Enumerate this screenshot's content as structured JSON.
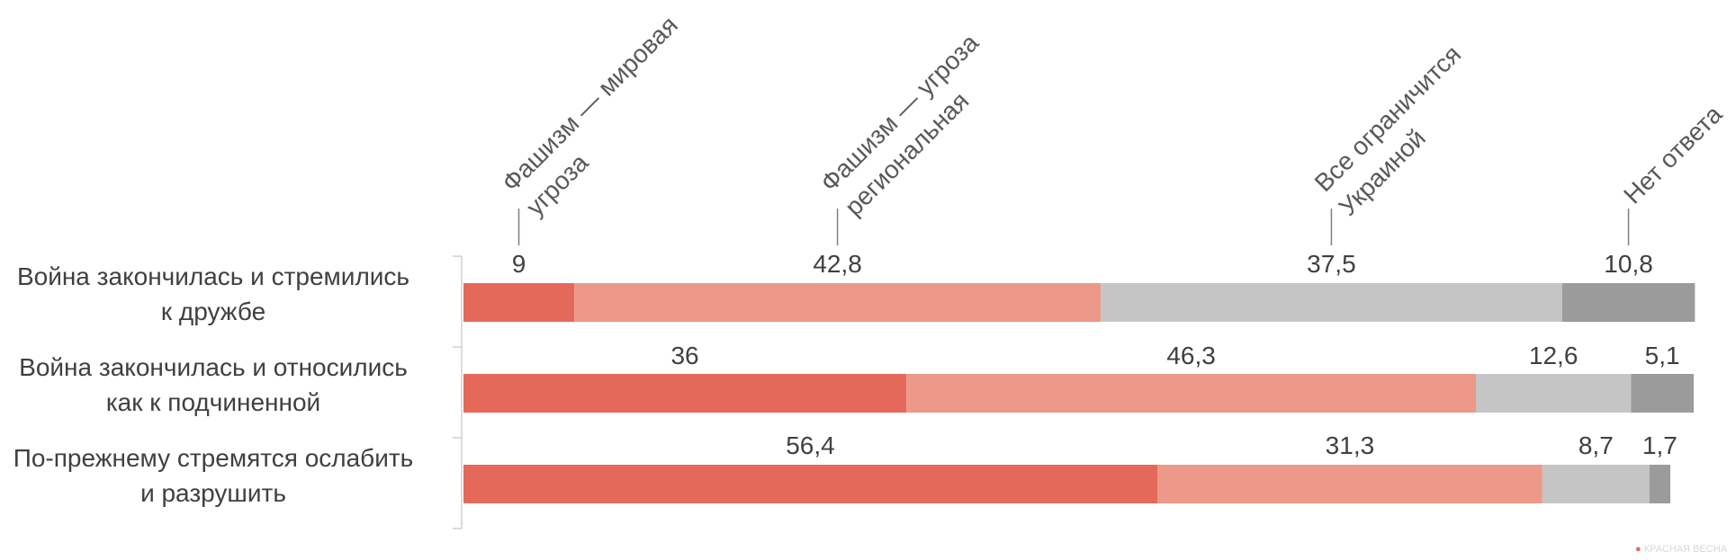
{
  "chart_data": {
    "type": "bar",
    "stacked": true,
    "orientation": "horizontal",
    "xlim": [
      0,
      100
    ],
    "grid": false,
    "legend_position": "top",
    "categories": [
      [
        "Война закончилась и стремились",
        "к дружбе"
      ],
      [
        "Война закончилась и относились",
        "как к подчиненной"
      ],
      [
        "По-прежнему стремятся ослабить",
        "и разрушить"
      ]
    ],
    "series": [
      {
        "name": "Фашизм — мировая угроза",
        "name_lines": [
          "Фашизм — мировая",
          "угроза"
        ],
        "color": "#e5695a",
        "values": [
          9,
          36,
          56.4
        ],
        "labels": [
          "9",
          "36",
          "56,4"
        ]
      },
      {
        "name": "Фашизм — угроза региональная",
        "name_lines": [
          "Фашизм — угроза",
          "региональная"
        ],
        "color": "#ec9989",
        "values": [
          42.8,
          46.3,
          31.3
        ],
        "labels": [
          "42,8",
          "46,3",
          "31,3"
        ]
      },
      {
        "name": "Все ограничится Украиной",
        "name_lines": [
          "Все ограничится",
          "Украиной"
        ],
        "color": "#c4c5c4",
        "values": [
          37.5,
          12.6,
          8.7
        ],
        "labels": [
          "37,5",
          "12,6",
          "8,7"
        ]
      },
      {
        "name": "Нет ответа",
        "name_lines": [
          "Нет ответа"
        ],
        "color": "#9b9b9b",
        "values": [
          10.8,
          5.1,
          1.7
        ],
        "labels": [
          "10,8",
          "5,1",
          "1,7"
        ]
      }
    ]
  },
  "watermark": {
    "text": "КРАСНАЯ ВЕСНА"
  }
}
